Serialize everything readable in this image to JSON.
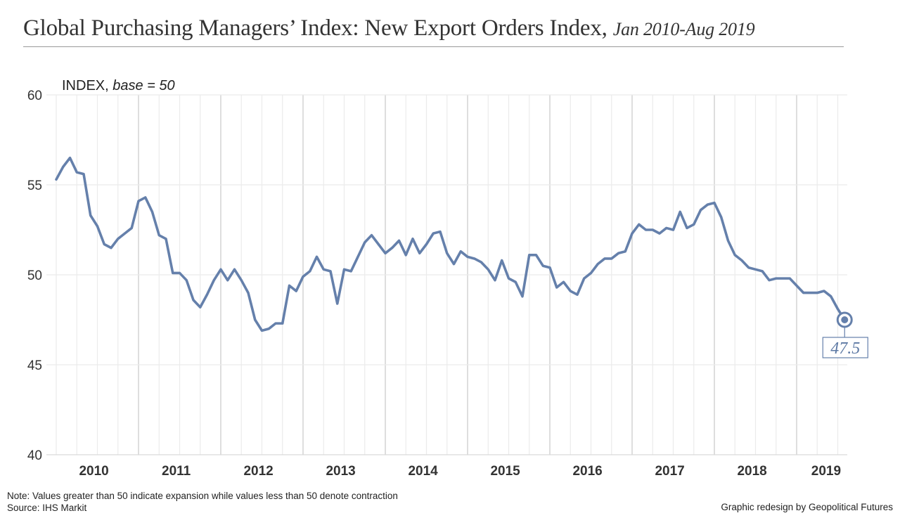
{
  "header": {
    "title": "Global Purchasing Managers’ Index: New Export Orders Index,",
    "subtitle": "Jan 2010-Aug 2019"
  },
  "footer": {
    "note": "Note: Values greater than 50 indicate expansion while values less than 50 denote contraction",
    "source": "Source: IHS Markit",
    "credit": "Graphic redesign by Geopolitical Futures"
  },
  "colors": {
    "line": "#6580ab",
    "grid": "#ebebeb",
    "year_grid": "#c8c8c8",
    "text": "#333333"
  },
  "chart_data": {
    "type": "line",
    "title": "Global Purchasing Managers’ Index: New Export Orders Index, Jan 2010-Aug 2019",
    "ylabel": "INDEX",
    "ylabel_italic": "base = 50",
    "xlabel": "",
    "ylim": [
      40,
      60
    ],
    "yticks": [
      40,
      45,
      50,
      55,
      60
    ],
    "x_start": "Jan 2010",
    "x_end": "Aug 2019",
    "frequency": "monthly",
    "xtick_labels": [
      "2010",
      "2011",
      "2012",
      "2013",
      "2014",
      "2015",
      "2016",
      "2017",
      "2018",
      "2019"
    ],
    "grid": "quarterly vertical gridlines, darker at each January; horizontal gridlines at y ticks",
    "legend": "none",
    "end_annotation": "47.5",
    "series": [
      {
        "name": "New Export Orders Index",
        "values": [
          55.3,
          56.0,
          56.5,
          55.7,
          55.6,
          53.3,
          52.7,
          51.7,
          51.5,
          52.0,
          52.3,
          52.6,
          54.1,
          54.3,
          53.5,
          52.2,
          52.0,
          50.1,
          50.1,
          49.7,
          48.6,
          48.2,
          48.9,
          49.7,
          50.3,
          49.7,
          50.3,
          49.7,
          49.0,
          47.5,
          46.9,
          47.0,
          47.3,
          47.3,
          49.4,
          49.1,
          49.9,
          50.2,
          51.0,
          50.3,
          50.2,
          48.4,
          50.3,
          50.2,
          51.0,
          51.8,
          52.2,
          51.7,
          51.2,
          51.5,
          51.9,
          51.1,
          52.0,
          51.2,
          51.7,
          52.3,
          52.4,
          51.2,
          50.6,
          51.3,
          51.0,
          50.9,
          50.7,
          50.3,
          49.7,
          50.8,
          49.8,
          49.6,
          48.8,
          51.1,
          51.1,
          50.5,
          50.4,
          49.3,
          49.6,
          49.1,
          48.9,
          49.8,
          50.1,
          50.6,
          50.9,
          50.9,
          51.2,
          51.3,
          52.3,
          52.8,
          52.5,
          52.5,
          52.3,
          52.6,
          52.5,
          53.5,
          52.6,
          52.8,
          53.6,
          53.9,
          54.0,
          53.2,
          51.9,
          51.1,
          50.8,
          50.4,
          50.3,
          50.2,
          49.7,
          49.8,
          49.8,
          49.8,
          49.4,
          49.0,
          49.0,
          49.0,
          49.1,
          48.8,
          48.1,
          47.5
        ]
      }
    ]
  }
}
